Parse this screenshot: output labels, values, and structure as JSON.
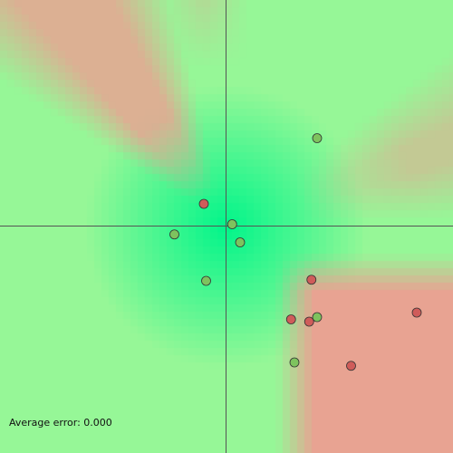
{
  "chart_data": {
    "type": "scatter",
    "xlim": [
      -1,
      1
    ],
    "ylim": [
      -1,
      1
    ],
    "axes": "cross at origin",
    "background": "heatmap of decision surface (green = class A, red = class B)",
    "colors": {
      "green_point": "#7ec35e",
      "red_point": "#cf5c5a",
      "green_region": "#00f58a",
      "light_green_region": "#96f797",
      "red_region": "#e8a392",
      "axis": "#555555"
    },
    "points": [
      {
        "x": 0.4,
        "y": 0.39,
        "label": "green"
      },
      {
        "x": -0.1,
        "y": 0.1,
        "label": "red"
      },
      {
        "x": 0.025,
        "y": 0.01,
        "label": "green"
      },
      {
        "x": -0.23,
        "y": -0.035,
        "label": "green"
      },
      {
        "x": 0.06,
        "y": -0.07,
        "label": "green"
      },
      {
        "x": 0.375,
        "y": -0.235,
        "label": "red"
      },
      {
        "x": -0.09,
        "y": -0.24,
        "label": "green"
      },
      {
        "x": 0.4,
        "y": -0.4,
        "label": "green"
      },
      {
        "x": 0.285,
        "y": -0.41,
        "label": "red"
      },
      {
        "x": 0.365,
        "y": -0.42,
        "label": "red"
      },
      {
        "x": 0.84,
        "y": -0.38,
        "label": "red"
      },
      {
        "x": 0.3,
        "y": -0.6,
        "label": "green"
      },
      {
        "x": 0.55,
        "y": -0.615,
        "label": "red"
      }
    ]
  },
  "stats": {
    "label": "Average error: 0.000"
  }
}
